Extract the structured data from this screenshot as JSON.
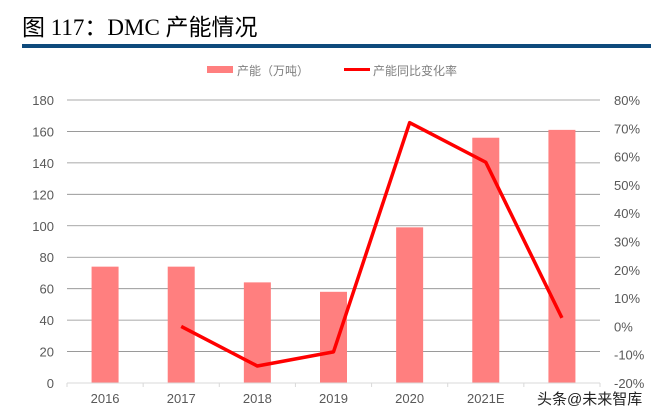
{
  "title": "图 117：DMC 产能情况",
  "chart_data": {
    "type": "bar+line",
    "categories": [
      "2016",
      "2017",
      "2018",
      "2019",
      "2020",
      "2021E",
      ""
    ],
    "series": [
      {
        "name": "产能（万吨）",
        "type": "bar",
        "axis": "left",
        "color": "#ff7f7f",
        "values": [
          74,
          74,
          64,
          58,
          99,
          156,
          161
        ]
      },
      {
        "name": "产能同比变化率",
        "type": "line",
        "axis": "right",
        "color": "#ff0000",
        "values": [
          null,
          0,
          -14,
          -9,
          72,
          58,
          3
        ]
      }
    ],
    "y_left": {
      "ylim": [
        0,
        180
      ],
      "ticks": [
        "0",
        "20",
        "40",
        "60",
        "80",
        "100",
        "120",
        "140",
        "160",
        "180"
      ]
    },
    "y_right": {
      "ylim": [
        -20,
        80
      ],
      "ticks": [
        "-20%",
        "-10%",
        "0%",
        "10%",
        "20%",
        "30%",
        "40%",
        "50%",
        "60%",
        "70%",
        "80%"
      ]
    },
    "grid": true,
    "legend": "top"
  },
  "watermark": "头条@未来智库"
}
